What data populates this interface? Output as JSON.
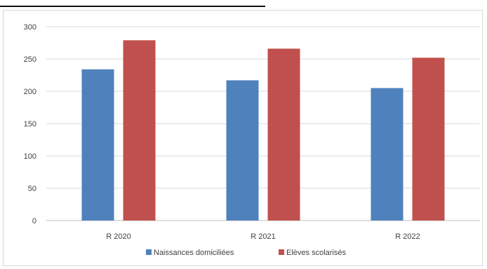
{
  "chart_data": {
    "type": "bar",
    "categories": [
      "R 2020",
      "R 2021",
      "R 2022"
    ],
    "series": [
      {
        "name": "Naissances domiciliées",
        "values": [
          234,
          217,
          205
        ],
        "color": "#4F81BD"
      },
      {
        "name": "Elèves scolarisés",
        "values": [
          279,
          266,
          252
        ],
        "color": "#C0504D"
      }
    ],
    "ylim": [
      0,
      300
    ],
    "yticks": [
      0,
      50,
      100,
      150,
      200,
      250,
      300
    ],
    "ytick_labels": [
      "0",
      "50",
      "100",
      "150",
      "200",
      "250",
      "300"
    ],
    "grid": true,
    "legend_position": "bottom",
    "title": "",
    "xlabel": "",
    "ylabel": ""
  }
}
